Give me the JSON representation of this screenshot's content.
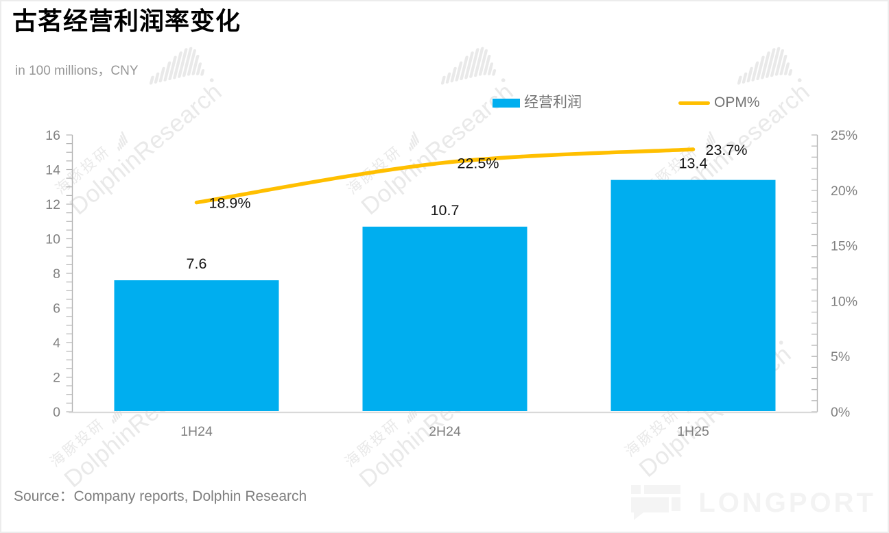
{
  "page": {
    "title": "古茗经营利润率变化",
    "subtitle": "in 100 millions，CNY",
    "source": "Source：Company reports, Dolphin Research"
  },
  "legend": [
    {
      "label": "经营利润",
      "type": "bar",
      "color": "#00AEEF"
    },
    {
      "label": "OPM%",
      "type": "line",
      "color": "#FFBF00"
    }
  ],
  "watermark": {
    "cn": "海豚投研",
    "en": "DolphinResearch"
  },
  "logo": {
    "text": "LONGPORT"
  },
  "chart_data": {
    "type": "combo",
    "title": "古茗经营利润率变化",
    "subtitle": "in 100 millions，CNY",
    "categories": [
      "1H24",
      "2H24",
      "1H25"
    ],
    "series": [
      {
        "name": "经营利润",
        "type": "bar",
        "axis": "left",
        "color": "#00AEEF",
        "values": [
          7.6,
          10.7,
          13.4
        ],
        "labels": [
          "7.6",
          "10.7",
          "13.4"
        ]
      },
      {
        "name": "OPM%",
        "type": "line",
        "axis": "right",
        "color": "#FFBF00",
        "values": [
          18.9,
          22.5,
          23.7
        ],
        "labels": [
          "18.9%",
          "22.5%",
          "23.7%"
        ]
      }
    ],
    "left_axis": {
      "min": 0,
      "max": 16,
      "tick_step": 2,
      "minor_step": 0.5,
      "tick_labels": [
        "0",
        "2",
        "4",
        "6",
        "8",
        "10",
        "12",
        "14",
        "16"
      ]
    },
    "right_axis": {
      "min": 0,
      "max": 25,
      "tick_step": 5,
      "minor_step": 1,
      "tick_labels": [
        "0%",
        "5%",
        "10%",
        "15%",
        "20%",
        "25%"
      ]
    },
    "grid": false,
    "legend_position": "top"
  }
}
